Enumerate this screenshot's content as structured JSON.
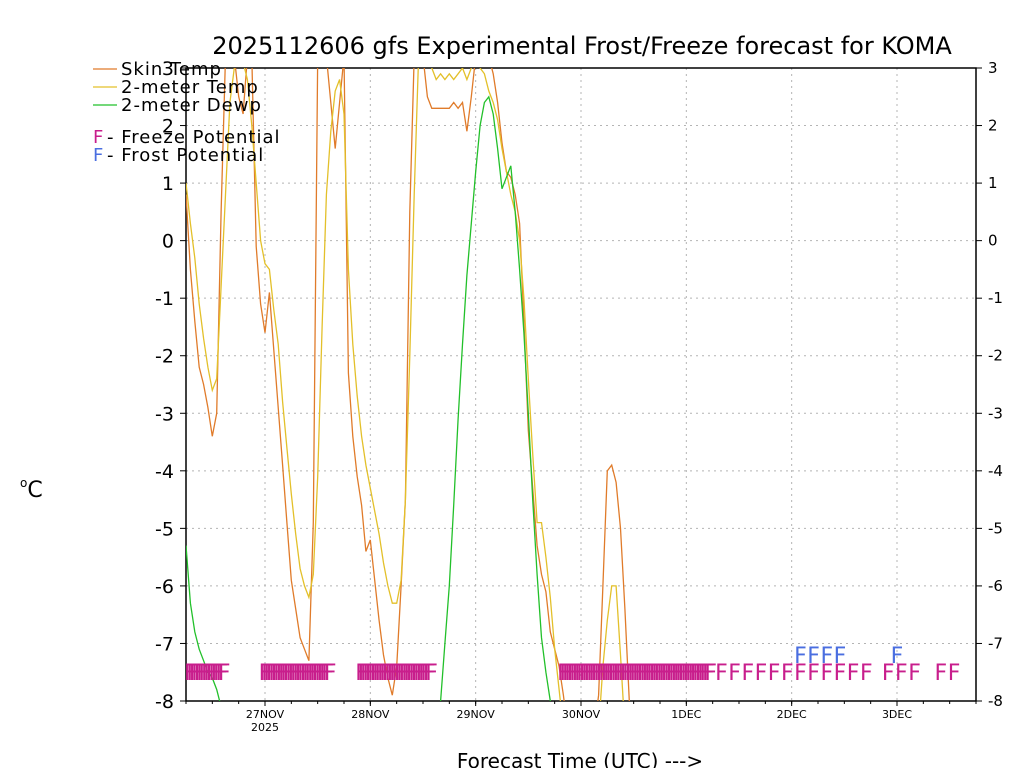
{
  "chart_data": {
    "type": "line",
    "title": "2025112606 gfs Experimental Frost/Freeze forecast for KOMA",
    "xlabel": "Forecast Time (UTC) --->",
    "ylabel_degree": "o",
    "ylabel_unit": "C",
    "ylim": [
      -8,
      3
    ],
    "xlim": [
      0,
      180
    ],
    "y_ticks": [
      "-8",
      "-7",
      "-6",
      "-5",
      "-4",
      "-3",
      "-2",
      "-1",
      "0",
      "1",
      "2",
      "3"
    ],
    "x_ticks": [
      {
        "label": "27NOV",
        "sublabel": "2025",
        "x": 18
      },
      {
        "label": "28NOV",
        "sublabel": "",
        "x": 42
      },
      {
        "label": "29NOV",
        "sublabel": "",
        "x": 66
      },
      {
        "label": "30NOV",
        "sublabel": "",
        "x": 90
      },
      {
        "label": "1DEC",
        "sublabel": "",
        "x": 114
      },
      {
        "label": "2DEC",
        "sublabel": "",
        "x": 138
      },
      {
        "label": "3DEC",
        "sublabel": "",
        "x": 162
      }
    ],
    "grid": true,
    "colors": {
      "skin": "#e07b2a",
      "temp2m": "#e3c02a",
      "dewp2m": "#22c02a",
      "freeze": "#c81e8c",
      "frost": "#4a6ee0"
    },
    "series": [
      {
        "name": "Skin Temp",
        "key": "skin",
        "x": [
          0,
          1,
          2,
          3,
          4,
          5,
          6,
          7,
          8,
          9,
          10,
          11,
          12,
          13,
          14,
          15,
          16,
          17,
          18,
          19,
          20,
          21,
          22,
          23,
          24,
          25,
          26,
          27,
          28,
          29,
          30,
          31,
          32,
          33,
          34,
          35,
          36,
          37,
          38,
          39,
          40,
          41,
          42,
          43,
          44,
          45,
          46,
          47,
          48,
          49,
          50,
          51,
          52,
          53,
          54,
          55,
          56,
          57,
          58,
          59,
          60,
          61,
          62,
          63,
          64,
          65,
          66,
          67,
          68,
          69,
          70,
          71,
          72,
          73,
          74,
          75,
          76,
          77,
          78,
          79,
          80,
          81,
          82,
          83,
          84,
          85,
          86,
          87,
          88,
          89,
          90,
          91,
          92,
          93,
          94,
          95,
          96,
          97,
          98,
          99,
          100,
          101,
          102,
          103,
          104,
          105,
          106,
          107,
          108,
          109,
          110,
          111,
          112
        ],
        "y": [
          0.8,
          -0.5,
          -1.4,
          -2.2,
          -2.5,
          -2.9,
          -3.4,
          -3.0,
          0.5,
          3.2,
          3.2,
          3.2,
          2.5,
          2.2,
          3.2,
          3.2,
          -0.1,
          -1.1,
          -1.6,
          -0.9,
          -1.9,
          -2.9,
          -3.9,
          -4.9,
          -5.9,
          -6.4,
          -6.9,
          -7.1,
          -7.3,
          -4.9,
          3.2,
          3.2,
          3.2,
          2.4,
          1.6,
          2.4,
          3.2,
          -2.3,
          -3.4,
          -4.1,
          -4.6,
          -5.4,
          -5.2,
          -5.9,
          -6.6,
          -7.2,
          -7.6,
          -7.9,
          -7.4,
          -6.0,
          -4.5,
          0.5,
          3.2,
          3.2,
          3.2,
          2.5,
          2.3,
          2.3,
          2.3,
          2.3,
          2.3,
          2.4,
          2.3,
          2.4,
          1.9,
          2.5,
          3.2,
          3.2,
          3.2,
          3.2,
          2.9,
          2.4,
          1.7,
          1.2,
          1.1,
          0.8,
          0.3,
          -1.4,
          -3.3,
          -4.3,
          -5.3,
          -5.8,
          -6.1,
          -6.8,
          -7.1,
          -7.4,
          -7.9,
          -8.5,
          -8.5,
          -8.5,
          -8.5,
          -8.5,
          -8.5,
          -8.5,
          -7.9,
          -6.0,
          -4.0,
          -3.9,
          -4.2,
          -5.0,
          -6.4,
          -8.0,
          -8.5,
          -8.5,
          -8.5,
          -8.5,
          -8.5,
          -8.5,
          -8.5,
          -8.5,
          -8.5,
          -8.5,
          -8.5
        ]
      },
      {
        "name": "2-meter Temp",
        "key": "temp2m",
        "x": [
          0,
          1,
          2,
          3,
          4,
          5,
          6,
          7,
          8,
          9,
          10,
          11,
          12,
          13,
          14,
          15,
          16,
          17,
          18,
          19,
          20,
          21,
          22,
          23,
          24,
          25,
          26,
          27,
          28,
          29,
          30,
          31,
          32,
          33,
          34,
          35,
          36,
          37,
          38,
          39,
          40,
          41,
          42,
          43,
          44,
          45,
          46,
          47,
          48,
          49,
          50,
          51,
          52,
          53,
          54,
          55,
          56,
          57,
          58,
          59,
          60,
          61,
          62,
          63,
          64,
          65,
          66,
          67,
          68,
          69,
          70,
          71,
          72,
          73,
          74,
          75,
          76,
          77,
          78,
          79,
          80,
          81,
          82,
          83,
          84,
          85,
          86,
          87,
          88,
          89,
          90,
          91,
          92,
          93,
          94,
          95,
          96,
          97,
          98,
          99,
          100,
          101,
          102,
          103,
          104,
          105,
          106,
          107,
          108,
          109,
          110,
          111,
          112
        ],
        "y": [
          1.0,
          0.3,
          -0.3,
          -1.1,
          -1.7,
          -2.2,
          -2.6,
          -2.4,
          -0.8,
          0.8,
          2.4,
          3.0,
          3.2,
          3.1,
          2.8,
          2.0,
          1.0,
          0.0,
          -0.4,
          -0.5,
          -1.2,
          -1.8,
          -2.8,
          -3.6,
          -4.4,
          -5.1,
          -5.7,
          -6.0,
          -6.2,
          -5.8,
          -4.1,
          -1.5,
          0.8,
          1.9,
          2.6,
          2.8,
          2.2,
          -0.5,
          -1.8,
          -2.7,
          -3.4,
          -3.9,
          -4.3,
          -4.7,
          -5.1,
          -5.6,
          -6.0,
          -6.3,
          -6.3,
          -5.9,
          -4.5,
          -2.0,
          0.8,
          3.2,
          3.2,
          3.2,
          3.0,
          2.8,
          2.9,
          2.8,
          2.9,
          2.8,
          2.9,
          3.0,
          2.8,
          3.0,
          3.2,
          3.0,
          2.9,
          2.6,
          2.4,
          2.1,
          1.6,
          1.2,
          0.8,
          0.5,
          0.0,
          -1.0,
          -2.4,
          -3.7,
          -4.9,
          -4.9,
          -5.5,
          -6.2,
          -7.1,
          -7.8,
          -8.5,
          -8.5,
          -8.5,
          -8.5,
          -8.5,
          -8.5,
          -8.5,
          -8.5,
          -8.5,
          -7.4,
          -6.6,
          -6.0,
          -6.0,
          -7.2,
          -8.5,
          -8.5,
          -8.5,
          -8.5,
          -8.5,
          -8.5,
          -8.5,
          -8.5,
          -8.5,
          -8.5,
          -8.5,
          -8.5,
          -8.5
        ]
      },
      {
        "name": "2-meter Dewp",
        "key": "dewp2m",
        "x": [
          0,
          1,
          2,
          3,
          4,
          5,
          6,
          7,
          8,
          9,
          50,
          51,
          52,
          53,
          54,
          55,
          56,
          57,
          58,
          59,
          60,
          61,
          62,
          63,
          64,
          65,
          66,
          67,
          68,
          69,
          70,
          71,
          72,
          73,
          74,
          75,
          76,
          77,
          78,
          79,
          80,
          81,
          82,
          83,
          84,
          85,
          86,
          87,
          88,
          89,
          90
        ],
        "y": [
          -5.3,
          -6.3,
          -6.8,
          -7.1,
          -7.3,
          -7.5,
          -7.6,
          -7.8,
          -8.1,
          -8.5,
          -8.5,
          -8.5,
          -8.5,
          -8.5,
          -8.5,
          -8.5,
          -8.5,
          -8.5,
          -8.0,
          -7.0,
          -6.0,
          -4.6,
          -3.1,
          -1.8,
          -0.6,
          0.3,
          1.2,
          2.0,
          2.4,
          2.5,
          2.2,
          1.6,
          0.9,
          1.1,
          1.3,
          0.5,
          -0.5,
          -1.6,
          -3.0,
          -4.5,
          -5.8,
          -6.9,
          -7.5,
          -8.0,
          -8.5,
          -8.5,
          -8.5,
          -8.5,
          -8.5,
          -8.5,
          -8.5
        ]
      }
    ],
    "legend": {
      "position": "top-left",
      "entries": [
        {
          "label": "Skin Temp",
          "key": "skin"
        },
        {
          "label": "2-meter Temp",
          "key": "temp2m"
        },
        {
          "label": "2-meter Dewp",
          "key": "dewp2m"
        }
      ],
      "potential_entries": [
        {
          "symbol": "F",
          "label": " - Freeze Potential",
          "key": "freeze"
        },
        {
          "symbol": "F",
          "label": " - Frost Potential",
          "key": "frost"
        }
      ]
    },
    "freeze_potential": {
      "symbol": "F",
      "level": -7.5,
      "segments": [
        [
          1,
          9
        ],
        [
          18,
          33
        ],
        [
          40,
          56
        ],
        [
          86,
          120
        ]
      ],
      "sparse": [
        122,
        125,
        128,
        131,
        134,
        137,
        140,
        143,
        146,
        149,
        152,
        155,
        160,
        163,
        166,
        172,
        175
      ]
    },
    "frost_potential": {
      "symbol": "F",
      "level": -7.2,
      "points": [
        140,
        143,
        146,
        149,
        162
      ]
    }
  }
}
